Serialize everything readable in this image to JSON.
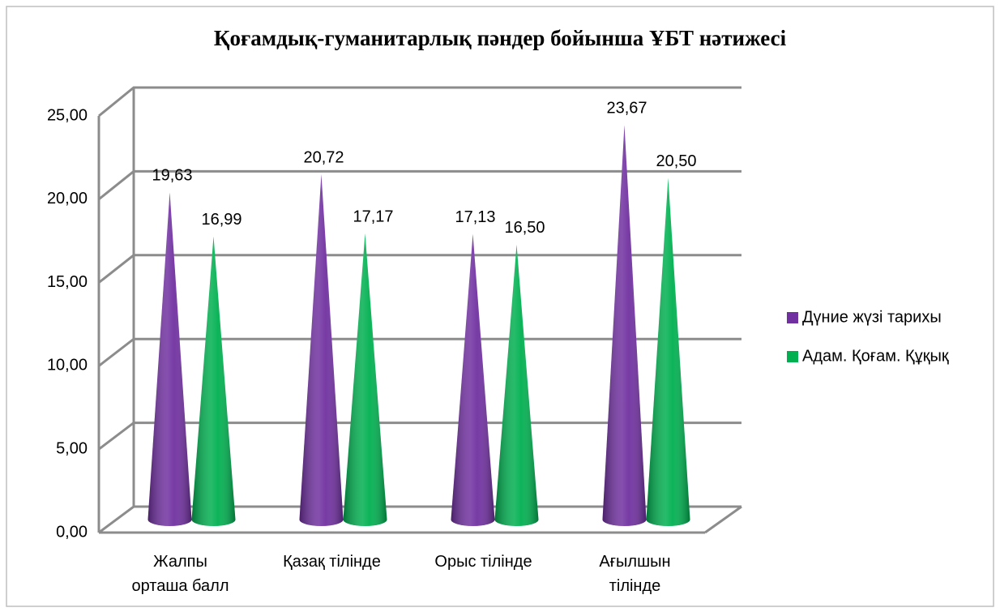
{
  "chart_data": {
    "type": "cone",
    "title": "Қоғамдық-гуманитарлық пәндер бойынша ҰБТ нәтижесі",
    "categories": [
      "Жалпы орташа балл",
      "Қазақ тілінде",
      "Орыс тілінде",
      "Ағылшын тілінде"
    ],
    "series": [
      {
        "name": "Дүние жүзі тарихы",
        "color": "#7030a0",
        "values": [
          19.63,
          20.72,
          17.13,
          23.67
        ],
        "value_labels": [
          "19,63",
          "20,72",
          "17,13",
          "23,67"
        ]
      },
      {
        "name": "Адам. Қоғам. Құқық",
        "color": "#00b050",
        "values": [
          16.99,
          17.17,
          16.5,
          20.5
        ],
        "value_labels": [
          "16,99",
          "17,17",
          "16,50",
          "20,50"
        ]
      }
    ],
    "ylim": [
      0,
      25
    ],
    "yticks": [
      {
        "value": 0,
        "label": "0,00"
      },
      {
        "value": 5,
        "label": "5,00"
      },
      {
        "value": 10,
        "label": "10,00"
      },
      {
        "value": 15,
        "label": "15,00"
      },
      {
        "value": 20,
        "label": "20,00"
      },
      {
        "value": 25,
        "label": "25,00"
      }
    ],
    "grid": true,
    "legend": "right"
  }
}
